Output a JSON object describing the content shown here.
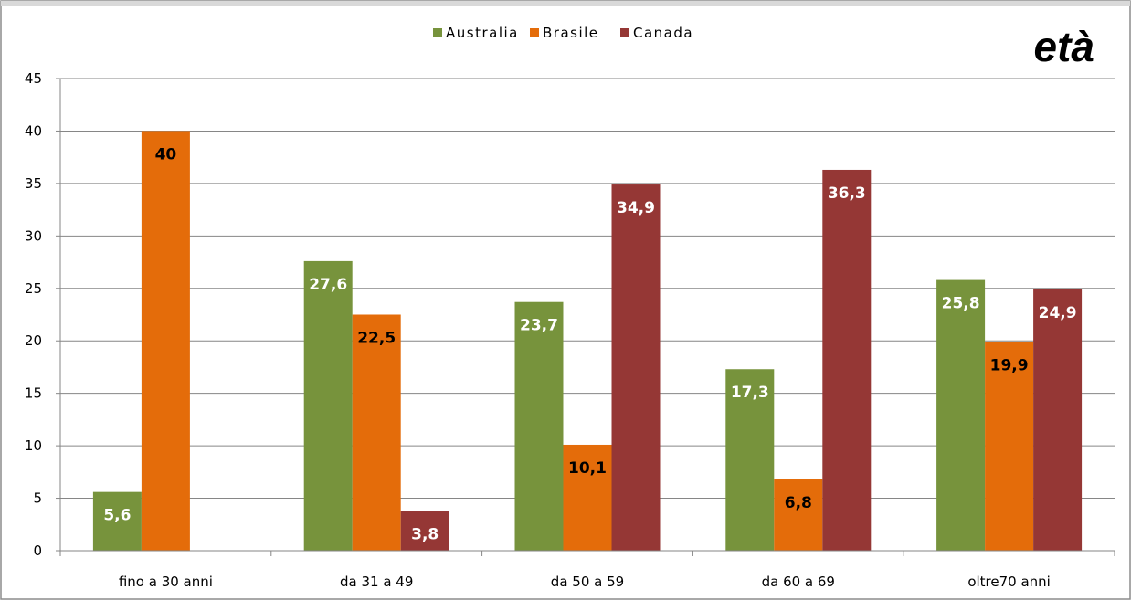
{
  "chart_data": {
    "type": "bar",
    "title": "età",
    "xlabel": "",
    "ylabel": "",
    "categories": [
      "fino a 30 anni",
      "da 31 a 49",
      "da 50 a 59",
      "da 60 a 69",
      "oltre70 anni"
    ],
    "series": [
      {
        "name": "Australia",
        "color": "#77933C",
        "values": [
          5.6,
          27.6,
          23.7,
          17.3,
          25.8
        ],
        "labels": [
          "5,6",
          "27,6",
          "23,7",
          "17,3",
          "25,8"
        ],
        "label_color": "#ffffff"
      },
      {
        "name": "Brasile",
        "color": "#E46C0A",
        "values": [
          40,
          22.5,
          10.1,
          6.8,
          19.9
        ],
        "labels": [
          "40",
          "22,5",
          "10,1",
          "6,8",
          "19,9"
        ],
        "label_color": "#000000"
      },
      {
        "name": "Canada",
        "color": "#953735",
        "values": [
          null,
          3.8,
          34.9,
          36.3,
          24.9
        ],
        "labels": [
          "",
          "3,8",
          "34,9",
          "36,3",
          "24,9"
        ],
        "label_color": "#ffffff"
      }
    ],
    "ylim": [
      0,
      45
    ],
    "yticks": [
      "0",
      "5",
      "10",
      "15",
      "20",
      "25",
      "30",
      "35",
      "40",
      "45"
    ],
    "grid": true,
    "legend_position": "top-center"
  }
}
